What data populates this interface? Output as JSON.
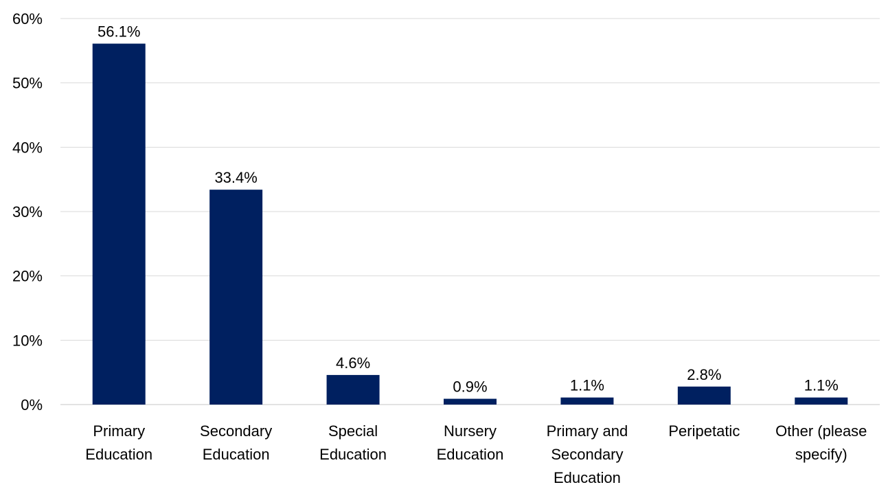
{
  "chart_data": {
    "type": "bar",
    "categories": [
      "Primary Education",
      "Secondary Education",
      "Special Education",
      "Nursery Education",
      "Primary and Secondary Education",
      "Peripetatic",
      "Other (please specify)"
    ],
    "category_label_lines": [
      [
        "Primary",
        "Education"
      ],
      [
        "Secondary",
        "Education"
      ],
      [
        "Special",
        "Education"
      ],
      [
        "Nursery",
        "Education"
      ],
      [
        "Primary and",
        "Secondary",
        "Education"
      ],
      [
        "Peripetatic"
      ],
      [
        "Other (please",
        "specify)"
      ]
    ],
    "values": [
      56.1,
      33.4,
      4.6,
      0.9,
      1.1,
      2.8,
      1.1
    ],
    "data_labels": [
      "56.1%",
      "33.4%",
      "4.6%",
      "0.9%",
      "1.1%",
      "2.8%",
      "1.1%"
    ],
    "y_ticks": [
      0,
      10,
      20,
      30,
      40,
      50,
      60
    ],
    "y_tick_labels": [
      "0%",
      "10%",
      "20%",
      "30%",
      "40%",
      "50%",
      "60%"
    ],
    "ylim": [
      0,
      60
    ],
    "title": "",
    "xlabel": "",
    "ylabel": "",
    "grid": true,
    "legend": "none",
    "colors": {
      "bar": "#002060",
      "grid": "#d9d9d9"
    }
  }
}
